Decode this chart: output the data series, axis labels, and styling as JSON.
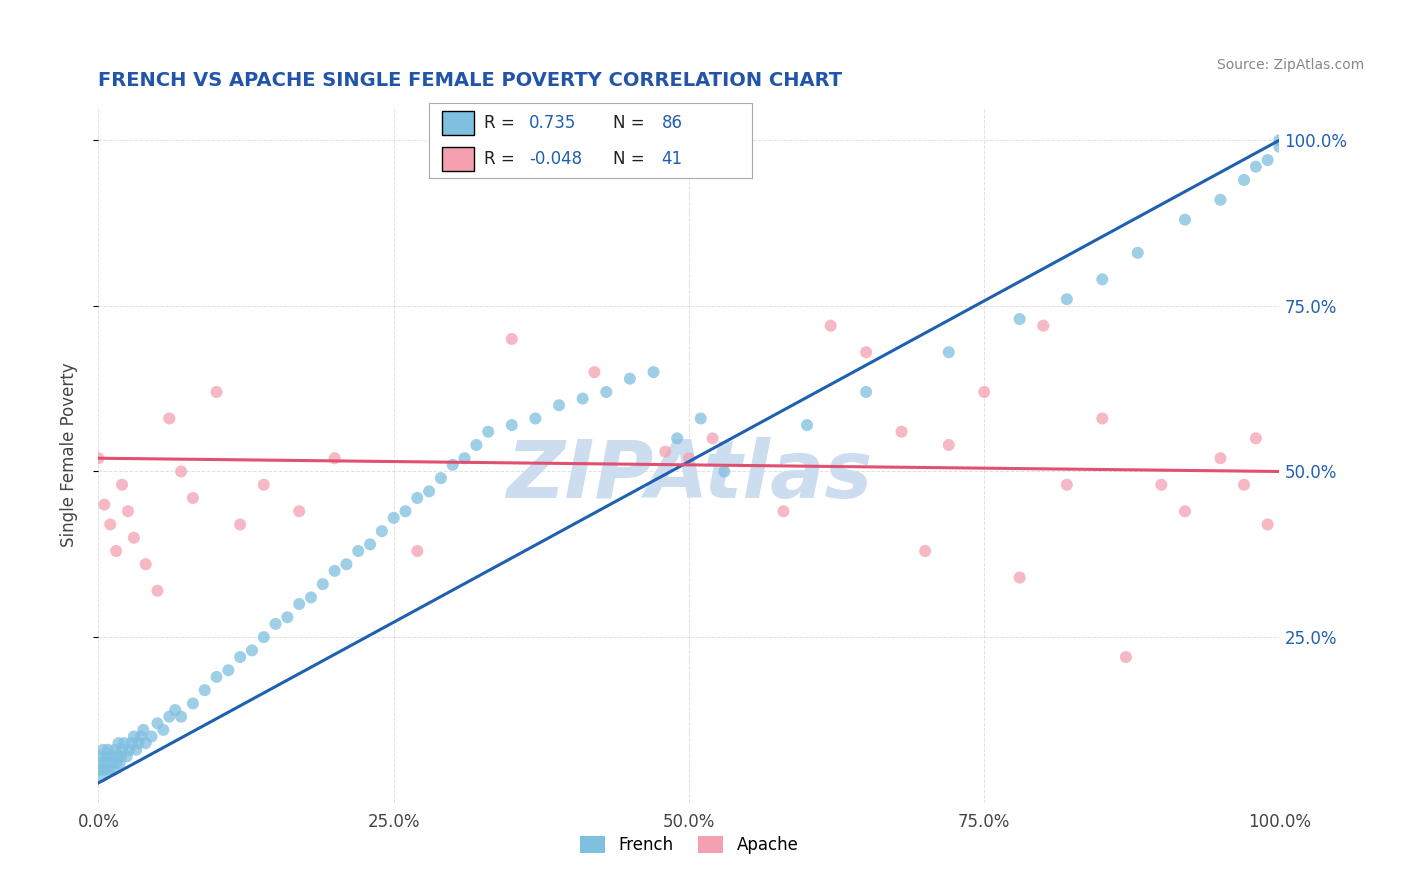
{
  "title": "FRENCH VS APACHE SINGLE FEMALE POVERTY CORRELATION CHART",
  "source_text": "Source: ZipAtlas.com",
  "ylabel": "Single Female Poverty",
  "french_R": 0.735,
  "french_N": 86,
  "apache_R": -0.048,
  "apache_N": 41,
  "french_color": "#7fbfdf",
  "apache_color": "#f4a0b0",
  "french_line_color": "#2060b0",
  "apache_line_color": "#e05070",
  "title_color": "#2255aa",
  "watermark_color": "#ccddf0",
  "background_color": "#ffffff",
  "grid_color": "#cccccc",
  "value_color": "#2060b0",
  "legend_border_color": "#aaaaaa",
  "xlim": [
    0.0,
    1.0
  ],
  "ylim": [
    0.0,
    1.05
  ],
  "x_tick_labels": [
    "0.0%",
    "25.0%",
    "50.0%",
    "75.0%",
    "100.0%"
  ],
  "x_tick_values": [
    0.0,
    0.25,
    0.5,
    0.75,
    1.0
  ],
  "y_tick_labels": [
    "25.0%",
    "50.0%",
    "75.0%",
    "100.0%"
  ],
  "y_tick_values": [
    0.25,
    0.5,
    0.75,
    1.0
  ],
  "french_x": [
    0.0,
    0.001,
    0.002,
    0.003,
    0.004,
    0.005,
    0.006,
    0.007,
    0.008,
    0.009,
    0.01,
    0.012,
    0.013,
    0.014,
    0.015,
    0.016,
    0.017,
    0.018,
    0.019,
    0.02,
    0.022,
    0.024,
    0.026,
    0.028,
    0.03,
    0.032,
    0.034,
    0.036,
    0.038,
    0.04,
    0.045,
    0.05,
    0.055,
    0.06,
    0.065,
    0.07,
    0.08,
    0.09,
    0.1,
    0.11,
    0.12,
    0.13,
    0.14,
    0.15,
    0.16,
    0.17,
    0.18,
    0.19,
    0.2,
    0.21,
    0.22,
    0.23,
    0.24,
    0.25,
    0.26,
    0.27,
    0.28,
    0.29,
    0.3,
    0.31,
    0.32,
    0.33,
    0.35,
    0.37,
    0.39,
    0.41,
    0.43,
    0.45,
    0.47,
    0.49,
    0.51,
    0.53,
    0.6,
    0.65,
    0.72,
    0.78,
    0.82,
    0.85,
    0.88,
    0.92,
    0.95,
    0.97,
    0.98,
    0.99,
    1.0,
    1.0
  ],
  "french_y": [
    0.06,
    0.05,
    0.07,
    0.04,
    0.08,
    0.05,
    0.06,
    0.07,
    0.08,
    0.05,
    0.06,
    0.07,
    0.05,
    0.08,
    0.06,
    0.07,
    0.09,
    0.06,
    0.07,
    0.08,
    0.09,
    0.07,
    0.08,
    0.09,
    0.1,
    0.08,
    0.09,
    0.1,
    0.11,
    0.09,
    0.1,
    0.12,
    0.11,
    0.13,
    0.14,
    0.13,
    0.15,
    0.17,
    0.19,
    0.2,
    0.22,
    0.23,
    0.25,
    0.27,
    0.28,
    0.3,
    0.31,
    0.33,
    0.35,
    0.36,
    0.38,
    0.39,
    0.41,
    0.43,
    0.44,
    0.46,
    0.47,
    0.49,
    0.51,
    0.52,
    0.54,
    0.56,
    0.57,
    0.58,
    0.6,
    0.61,
    0.62,
    0.64,
    0.65,
    0.55,
    0.58,
    0.5,
    0.57,
    0.62,
    0.68,
    0.73,
    0.76,
    0.79,
    0.83,
    0.88,
    0.91,
    0.94,
    0.96,
    0.97,
    0.99,
    1.0
  ],
  "apache_x": [
    0.0,
    0.005,
    0.01,
    0.015,
    0.02,
    0.025,
    0.03,
    0.04,
    0.05,
    0.06,
    0.07,
    0.08,
    0.1,
    0.12,
    0.14,
    0.17,
    0.2,
    0.27,
    0.35,
    0.42,
    0.48,
    0.5,
    0.52,
    0.58,
    0.62,
    0.65,
    0.68,
    0.7,
    0.72,
    0.75,
    0.78,
    0.8,
    0.82,
    0.85,
    0.87,
    0.9,
    0.92,
    0.95,
    0.97,
    0.98,
    0.99
  ],
  "apache_y": [
    0.52,
    0.45,
    0.42,
    0.38,
    0.48,
    0.44,
    0.4,
    0.36,
    0.32,
    0.58,
    0.5,
    0.46,
    0.62,
    0.42,
    0.48,
    0.44,
    0.52,
    0.38,
    0.7,
    0.65,
    0.53,
    0.52,
    0.55,
    0.44,
    0.72,
    0.68,
    0.56,
    0.38,
    0.54,
    0.62,
    0.34,
    0.72,
    0.48,
    0.58,
    0.22,
    0.48,
    0.44,
    0.52,
    0.48,
    0.55,
    0.42
  ],
  "apache_line_y_start": 0.52,
  "apache_line_y_end": 0.5,
  "french_line_y_start": 0.03,
  "french_line_y_end": 1.0
}
